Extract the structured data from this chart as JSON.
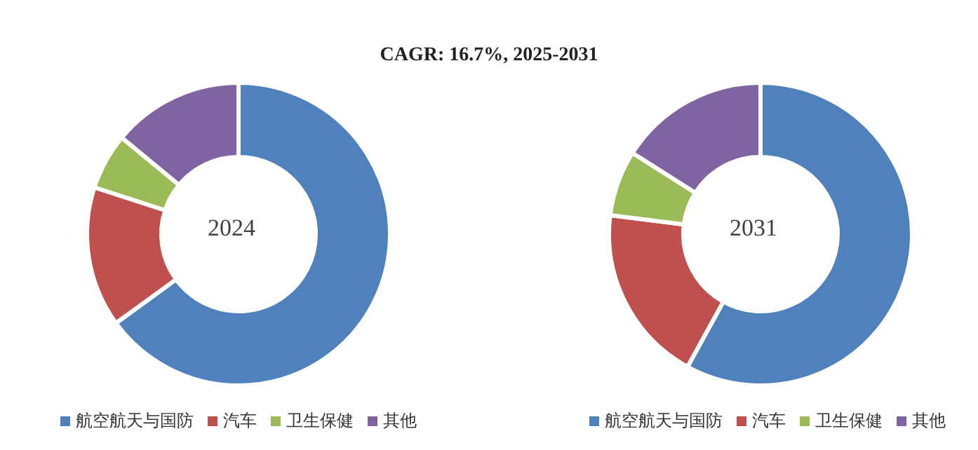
{
  "chart_data": [
    {
      "type": "donut",
      "title": "CAGR: 16.7%, 2025-2031",
      "subtitle": "2024",
      "categories": [
        "航空航天与国防",
        "汽车",
        "卫生保健",
        "其他"
      ],
      "values": [
        65,
        15,
        6,
        14
      ],
      "colors": [
        "#4f81bd",
        "#c0504d",
        "#9bbb59",
        "#8064a2"
      ],
      "legend": "bottom"
    },
    {
      "type": "donut",
      "subtitle": "2031",
      "categories": [
        "航空航天与国防",
        "汽车",
        "卫生保健",
        "其他"
      ],
      "values": [
        58,
        19,
        7,
        16
      ],
      "colors": [
        "#4f81bd",
        "#c0504d",
        "#9bbb59",
        "#8064a2"
      ],
      "legend": "bottom"
    }
  ]
}
